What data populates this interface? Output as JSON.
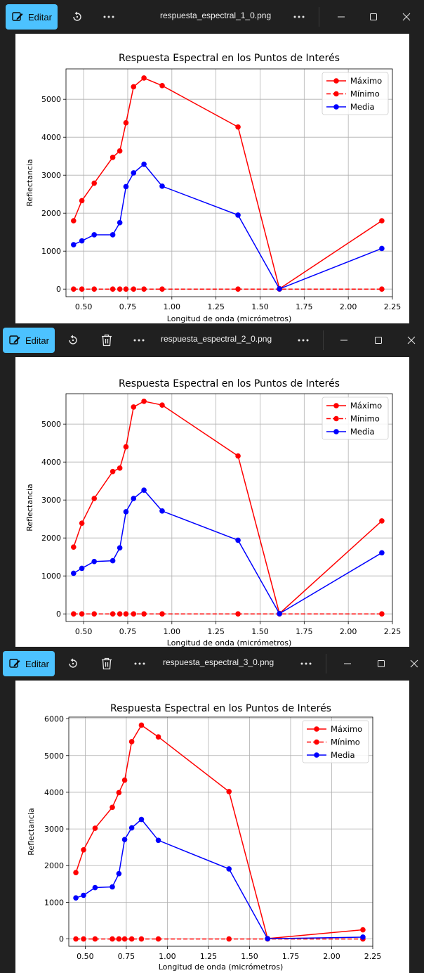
{
  "colors": {
    "accent": "#4cc2ff",
    "max": "#ff0000",
    "mean": "#0000ff"
  },
  "windows": [
    {
      "edit_label": "Editar",
      "filename": "respuesta_espectral_1_0.png",
      "icons": [
        "edit-icon",
        "rotate-icon",
        "more-icon",
        "more-icon",
        "minimize-icon",
        "maximize-icon",
        "close-icon"
      ]
    },
    {
      "edit_label": "Editar",
      "filename": "respuesta_espectral_2_0.png",
      "icons": [
        "edit-icon",
        "rotate-icon",
        "delete-icon",
        "more-icon",
        "more-icon",
        "minimize-icon",
        "maximize-icon",
        "close-icon"
      ]
    },
    {
      "edit_label": "Editar",
      "filename": "respuesta_espectral_3_0.png",
      "icons": [
        "edit-icon",
        "rotate-icon",
        "delete-icon",
        "more-icon",
        "more-icon",
        "minimize-icon",
        "maximize-icon",
        "close-icon"
      ]
    }
  ],
  "chart_data": [
    {
      "type": "line",
      "title": "Respuesta Espectral en los Puntos de Interés",
      "xlabel": "Longitud de onda (micrómetros)",
      "ylabel": "Reflectancia",
      "xlim": [
        0.4,
        2.25
      ],
      "ylim": [
        -200,
        5800
      ],
      "xticks": [
        "0.50",
        "0.75",
        "1.00",
        "1.25",
        "1.50",
        "1.75",
        "2.00",
        "2.25"
      ],
      "yticks": [
        "0",
        "1000",
        "2000",
        "3000",
        "4000",
        "5000"
      ],
      "grid": true,
      "legend_position": "top-right",
      "x": [
        0.443,
        0.49,
        0.56,
        0.665,
        0.705,
        0.74,
        0.783,
        0.842,
        0.945,
        1.375,
        1.61,
        2.19
      ],
      "series": [
        {
          "name": "Máximo",
          "style": "solid",
          "color": "#ff0000",
          "values": [
            1800,
            2330,
            2790,
            3470,
            3640,
            4380,
            5330,
            5560,
            5360,
            4270,
            10,
            1800
          ]
        },
        {
          "name": "Mínimo",
          "style": "dashed",
          "color": "#ff0000",
          "values": [
            0,
            0,
            0,
            0,
            0,
            0,
            0,
            0,
            0,
            0,
            0,
            0
          ]
        },
        {
          "name": "Media",
          "style": "solid",
          "color": "#0000ff",
          "values": [
            1170,
            1270,
            1430,
            1430,
            1750,
            2700,
            3060,
            3290,
            2710,
            1950,
            5,
            1070
          ]
        }
      ]
    },
    {
      "type": "line",
      "title": "Respuesta Espectral en los Puntos de Interés",
      "xlabel": "Longitud de onda (micrómetros)",
      "ylabel": "Reflectancia",
      "xlim": [
        0.4,
        2.25
      ],
      "ylim": [
        -200,
        5800
      ],
      "xticks": [
        "0.50",
        "0.75",
        "1.00",
        "1.25",
        "1.50",
        "1.75",
        "2.00",
        "2.25"
      ],
      "yticks": [
        "0",
        "1000",
        "2000",
        "3000",
        "4000",
        "5000"
      ],
      "grid": true,
      "legend_position": "top-right",
      "x": [
        0.443,
        0.49,
        0.56,
        0.665,
        0.705,
        0.74,
        0.783,
        0.842,
        0.945,
        1.375,
        1.61,
        2.19
      ],
      "series": [
        {
          "name": "Máximo",
          "style": "solid",
          "color": "#ff0000",
          "values": [
            1760,
            2390,
            3040,
            3750,
            3840,
            4400,
            5450,
            5600,
            5500,
            4160,
            10,
            2450
          ]
        },
        {
          "name": "Mínimo",
          "style": "dashed",
          "color": "#ff0000",
          "values": [
            0,
            0,
            0,
            0,
            0,
            0,
            0,
            0,
            0,
            0,
            0,
            0
          ]
        },
        {
          "name": "Media",
          "style": "solid",
          "color": "#0000ff",
          "values": [
            1070,
            1200,
            1380,
            1400,
            1740,
            2690,
            3040,
            3260,
            2710,
            1940,
            5,
            1610
          ]
        }
      ]
    },
    {
      "type": "line",
      "title": "Respuesta Espectral en los Puntos de Interés",
      "xlabel": "Longitud de onda (micrómetros)",
      "ylabel": "Reflectancia",
      "xlim": [
        0.4,
        2.25
      ],
      "ylim": [
        -200,
        6050
      ],
      "xticks": [
        "0.50",
        "0.75",
        "1.00",
        "1.25",
        "1.50",
        "1.75",
        "2.00",
        "2.25"
      ],
      "yticks": [
        "0",
        "1000",
        "2000",
        "3000",
        "4000",
        "5000",
        "6000"
      ],
      "grid": true,
      "legend_position": "top-right",
      "x": [
        0.443,
        0.49,
        0.56,
        0.665,
        0.705,
        0.74,
        0.783,
        0.842,
        0.945,
        1.375,
        1.61,
        2.19
      ],
      "series": [
        {
          "name": "Máximo",
          "style": "solid",
          "color": "#ff0000",
          "values": [
            1810,
            2430,
            3020,
            3590,
            3990,
            4330,
            5380,
            5830,
            5510,
            4020,
            10,
            250
          ]
        },
        {
          "name": "Mínimo",
          "style": "dashed",
          "color": "#ff0000",
          "values": [
            0,
            0,
            0,
            0,
            0,
            0,
            0,
            0,
            0,
            0,
            0,
            0
          ]
        },
        {
          "name": "Media",
          "style": "solid",
          "color": "#0000ff",
          "values": [
            1120,
            1190,
            1400,
            1420,
            1780,
            2710,
            3030,
            3260,
            2690,
            1910,
            5,
            50
          ]
        }
      ]
    }
  ]
}
